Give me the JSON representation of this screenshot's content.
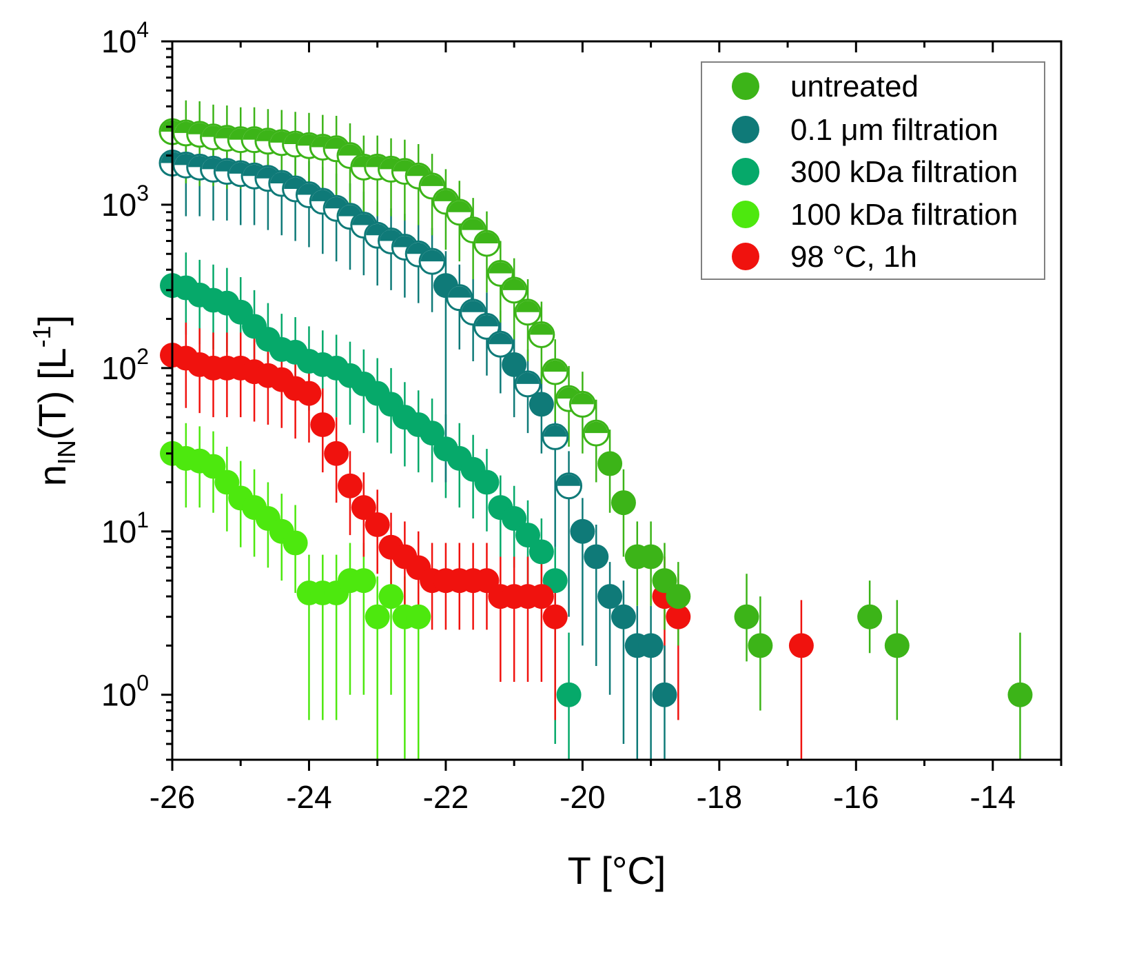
{
  "chart_data": {
    "type": "scatter",
    "title": "",
    "xlabel": "T [°C]",
    "ylabel_base": "n",
    "ylabel_sub": "IN",
    "ylabel_mid": "(T) [L",
    "ylabel_sup": "-1",
    "ylabel_end": "]",
    "xlim": [
      -26,
      -13
    ],
    "ylim": [
      0.4,
      10000
    ],
    "yscale": "log",
    "x_ticks": [
      -26,
      -24,
      -22,
      -20,
      -18,
      -16,
      -14
    ],
    "x_tick_labels": [
      "-26",
      "-24",
      "-22",
      "-20",
      "-18",
      "-16",
      "-14"
    ],
    "y_ticks": [
      {
        "value": 1,
        "base": "10",
        "exp": "0"
      },
      {
        "value": 10,
        "base": "10",
        "exp": "1"
      },
      {
        "value": 100,
        "base": "10",
        "exp": "2"
      },
      {
        "value": 1000,
        "base": "10",
        "exp": "3"
      },
      {
        "value": 10000,
        "base": "10",
        "exp": "4"
      }
    ],
    "legend_position": "top-right",
    "series": [
      {
        "name": "untreated",
        "color": "#3cb418",
        "marker": "filled",
        "x": [
          -26.0,
          -25.8,
          -25.6,
          -25.4,
          -25.2,
          -25.0,
          -24.8,
          -24.6,
          -24.4,
          -24.2,
          -24.0,
          -23.8,
          -23.6,
          -23.4,
          -23.2,
          -23.0,
          -22.8,
          -22.6,
          -22.4,
          -22.2,
          -22.0,
          -21.8,
          -21.6,
          -21.4,
          -21.2,
          -21.0,
          -20.8,
          -20.6,
          -20.4,
          -20.2,
          -20.0,
          -19.8,
          -19.6,
          -19.4,
          -19.2,
          -19.0,
          -18.8,
          -18.6,
          -17.6,
          -17.4,
          -15.8,
          -15.4,
          -13.6
        ],
        "y": [
          2800,
          2750,
          2700,
          2600,
          2550,
          2500,
          2500,
          2450,
          2400,
          2350,
          2300,
          2250,
          2200,
          2000,
          1700,
          1700,
          1650,
          1600,
          1500,
          1300,
          1050,
          900,
          700,
          580,
          380,
          300,
          220,
          160,
          95,
          65,
          60,
          40,
          26,
          15,
          7,
          7,
          5,
          4,
          3,
          2,
          3,
          2,
          1
        ],
        "err_low": [
          1400,
          1400,
          1400,
          1300,
          1300,
          1250,
          1250,
          1200,
          1200,
          1150,
          1150,
          1100,
          1100,
          1000,
          850,
          850,
          800,
          800,
          750,
          650,
          520,
          450,
          350,
          290,
          190,
          150,
          110,
          80,
          48,
          32,
          30,
          20,
          13,
          8,
          3.5,
          3.5,
          2.5,
          2,
          1.4,
          1.2,
          1.2,
          1.3,
          0.9
        ],
        "err_high": [
          1600,
          1600,
          1600,
          1500,
          1500,
          1450,
          1450,
          1400,
          1400,
          1350,
          1350,
          1300,
          1300,
          1150,
          950,
          950,
          900,
          900,
          850,
          750,
          600,
          500,
          400,
          330,
          220,
          170,
          130,
          95,
          55,
          38,
          35,
          24,
          16,
          9,
          4.5,
          4.5,
          3.5,
          2.5,
          2.5,
          2,
          2,
          1.8,
          1.4
        ],
        "open": [
          true,
          true,
          true,
          true,
          true,
          true,
          true,
          true,
          true,
          true,
          true,
          true,
          true,
          true,
          true,
          true,
          true,
          true,
          true,
          true,
          true,
          true,
          true,
          true,
          true,
          true,
          true,
          true,
          true,
          true,
          true,
          true,
          false,
          false,
          false,
          false,
          false,
          false,
          false,
          false,
          false,
          false,
          false
        ]
      },
      {
        "name": "0.1 μm filtration",
        "color": "#0f7a78",
        "marker": "filled",
        "x": [
          -26.0,
          -25.8,
          -25.6,
          -25.4,
          -25.2,
          -25.0,
          -24.8,
          -24.6,
          -24.4,
          -24.2,
          -24.0,
          -23.8,
          -23.6,
          -23.4,
          -23.2,
          -23.0,
          -22.8,
          -22.6,
          -22.4,
          -22.2,
          -22.0,
          -21.8,
          -21.6,
          -21.4,
          -21.2,
          -21.0,
          -20.8,
          -20.6,
          -20.4,
          -20.2,
          -20.0,
          -19.8,
          -19.6,
          -19.4,
          -19.2,
          -19.0,
          -18.8
        ],
        "y": [
          1800,
          1750,
          1700,
          1650,
          1600,
          1550,
          1500,
          1450,
          1350,
          1250,
          1150,
          1050,
          950,
          850,
          750,
          650,
          600,
          550,
          500,
          450,
          320,
          270,
          220,
          180,
          140,
          105,
          80,
          60,
          38,
          19,
          10,
          7,
          4,
          3,
          2,
          2,
          1
        ],
        "err_low": [
          900,
          900,
          850,
          850,
          800,
          800,
          750,
          750,
          700,
          650,
          600,
          550,
          500,
          450,
          380,
          330,
          300,
          280,
          250,
          230,
          300,
          140,
          110,
          90,
          70,
          55,
          40,
          30,
          30,
          16,
          8,
          5.5,
          3,
          2.5,
          1.6,
          1.6,
          0.9
        ],
        "err_high": [
          1050,
          1050,
          1000,
          1000,
          950,
          950,
          900,
          850,
          800,
          750,
          700,
          650,
          600,
          500,
          450,
          400,
          350,
          330,
          300,
          270,
          200,
          160,
          130,
          110,
          85,
          65,
          50,
          35,
          25,
          12,
          6,
          4,
          2.5,
          2,
          1.5,
          1.5,
          1
        ],
        "open": [
          true,
          true,
          true,
          true,
          true,
          true,
          true,
          true,
          true,
          true,
          true,
          true,
          true,
          true,
          true,
          true,
          true,
          true,
          true,
          true,
          false,
          true,
          true,
          true,
          true,
          false,
          true,
          false,
          true,
          true,
          false,
          false,
          false,
          false,
          false,
          false,
          false
        ]
      },
      {
        "name": "300 kDa filtration",
        "color": "#06a96a",
        "marker": "filled",
        "x": [
          -26.0,
          -25.8,
          -25.6,
          -25.4,
          -25.2,
          -25.0,
          -24.8,
          -24.6,
          -24.4,
          -24.2,
          -24.0,
          -23.8,
          -23.6,
          -23.4,
          -23.2,
          -23.0,
          -22.8,
          -22.6,
          -22.4,
          -22.2,
          -22.0,
          -21.8,
          -21.6,
          -21.4,
          -21.2,
          -21.0,
          -20.8,
          -20.6,
          -20.4,
          -20.2
        ],
        "y": [
          320,
          310,
          280,
          260,
          250,
          220,
          180,
          150,
          130,
          125,
          110,
          105,
          100,
          90,
          80,
          70,
          60,
          50,
          45,
          40,
          32,
          28,
          24,
          20,
          14,
          12,
          9.5,
          7.5,
          5,
          1
        ],
        "err_low": [
          300,
          150,
          140,
          130,
          125,
          110,
          90,
          75,
          65,
          62,
          55,
          52,
          50,
          45,
          40,
          35,
          30,
          25,
          22,
          20,
          16,
          14,
          12,
          10,
          7,
          6,
          4.8,
          3.8,
          4.5,
          0.9
        ],
        "err_high": [
          400,
          200,
          180,
          170,
          160,
          140,
          120,
          100,
          85,
          80,
          70,
          65,
          60,
          55,
          50,
          45,
          40,
          32,
          28,
          25,
          20,
          18,
          15,
          12,
          8,
          7,
          6,
          4.5,
          3,
          1.4
        ],
        "open": [
          false,
          false,
          false,
          false,
          false,
          false,
          false,
          false,
          false,
          false,
          false,
          false,
          false,
          false,
          false,
          false,
          false,
          false,
          false,
          false,
          false,
          false,
          false,
          false,
          false,
          false,
          false,
          false,
          false,
          false
        ]
      },
      {
        "name": "100 kDa filtration",
        "color": "#4de80e",
        "marker": "filled",
        "x": [
          -26.0,
          -25.8,
          -25.6,
          -25.4,
          -25.2,
          -25.0,
          -24.8,
          -24.6,
          -24.4,
          -24.2,
          -24.0,
          -23.8,
          -23.6,
          -23.4,
          -23.2,
          -23.0,
          -22.8,
          -22.6,
          -22.4
        ],
        "y": [
          30,
          28,
          27,
          25,
          20,
          16,
          14,
          12,
          10,
          8.5,
          4.2,
          4.2,
          4.2,
          5,
          5,
          3,
          4,
          3,
          3
        ],
        "err_low": [
          15,
          14,
          13,
          12,
          10,
          8,
          7,
          6,
          5,
          4.3,
          3.5,
          3.5,
          3.5,
          4,
          4,
          2.9,
          3,
          2.9,
          2.9
        ],
        "err_high": [
          20,
          18,
          17,
          16,
          13,
          11,
          10,
          8,
          7,
          6,
          3,
          3,
          3,
          3.5,
          3.5,
          2.3,
          2.5,
          2.3,
          2.3
        ],
        "open": [
          false,
          false,
          false,
          false,
          false,
          false,
          false,
          false,
          false,
          false,
          false,
          false,
          false,
          false,
          false,
          false,
          false,
          false,
          false
        ]
      },
      {
        "name": "98 °C, 1h",
        "color": "#f0120e",
        "marker": "filled",
        "x": [
          -26.0,
          -25.8,
          -25.6,
          -25.4,
          -25.2,
          -25.0,
          -24.8,
          -24.6,
          -24.4,
          -24.2,
          -24.0,
          -23.8,
          -23.6,
          -23.4,
          -23.2,
          -23.0,
          -22.8,
          -22.6,
          -22.4,
          -22.2,
          -22.0,
          -21.8,
          -21.6,
          -21.4,
          -21.2,
          -21.0,
          -20.8,
          -20.6,
          -20.4,
          -18.8,
          -18.6,
          -16.8
        ],
        "y": [
          120,
          115,
          105,
          100,
          100,
          100,
          95,
          90,
          85,
          75,
          70,
          45,
          30,
          19,
          14,
          11,
          8,
          7,
          6,
          5,
          5,
          5,
          5,
          5,
          4,
          4,
          4,
          4,
          3,
          4,
          3,
          2
        ],
        "err_low": [
          60,
          58,
          52,
          50,
          50,
          50,
          48,
          45,
          42,
          38,
          35,
          22,
          15,
          9.5,
          7,
          5.5,
          4,
          3.5,
          3,
          2.5,
          2.5,
          2.5,
          2.5,
          2.5,
          2.8,
          2.8,
          2.8,
          2.8,
          2.3,
          2.8,
          2.3,
          1.8
        ],
        "err_high": [
          80,
          75,
          70,
          65,
          65,
          65,
          62,
          60,
          55,
          50,
          45,
          30,
          20,
          12,
          9,
          7,
          5,
          4.5,
          4,
          3.5,
          3.5,
          3.5,
          3.5,
          3.5,
          3,
          3,
          3,
          3,
          2.5,
          3,
          2.5,
          1.8
        ],
        "open": [
          false,
          false,
          false,
          false,
          false,
          false,
          false,
          false,
          false,
          false,
          false,
          false,
          false,
          false,
          false,
          false,
          false,
          false,
          false,
          false,
          false,
          false,
          false,
          false,
          false,
          false,
          false,
          false,
          false,
          false,
          false,
          false
        ]
      }
    ]
  }
}
